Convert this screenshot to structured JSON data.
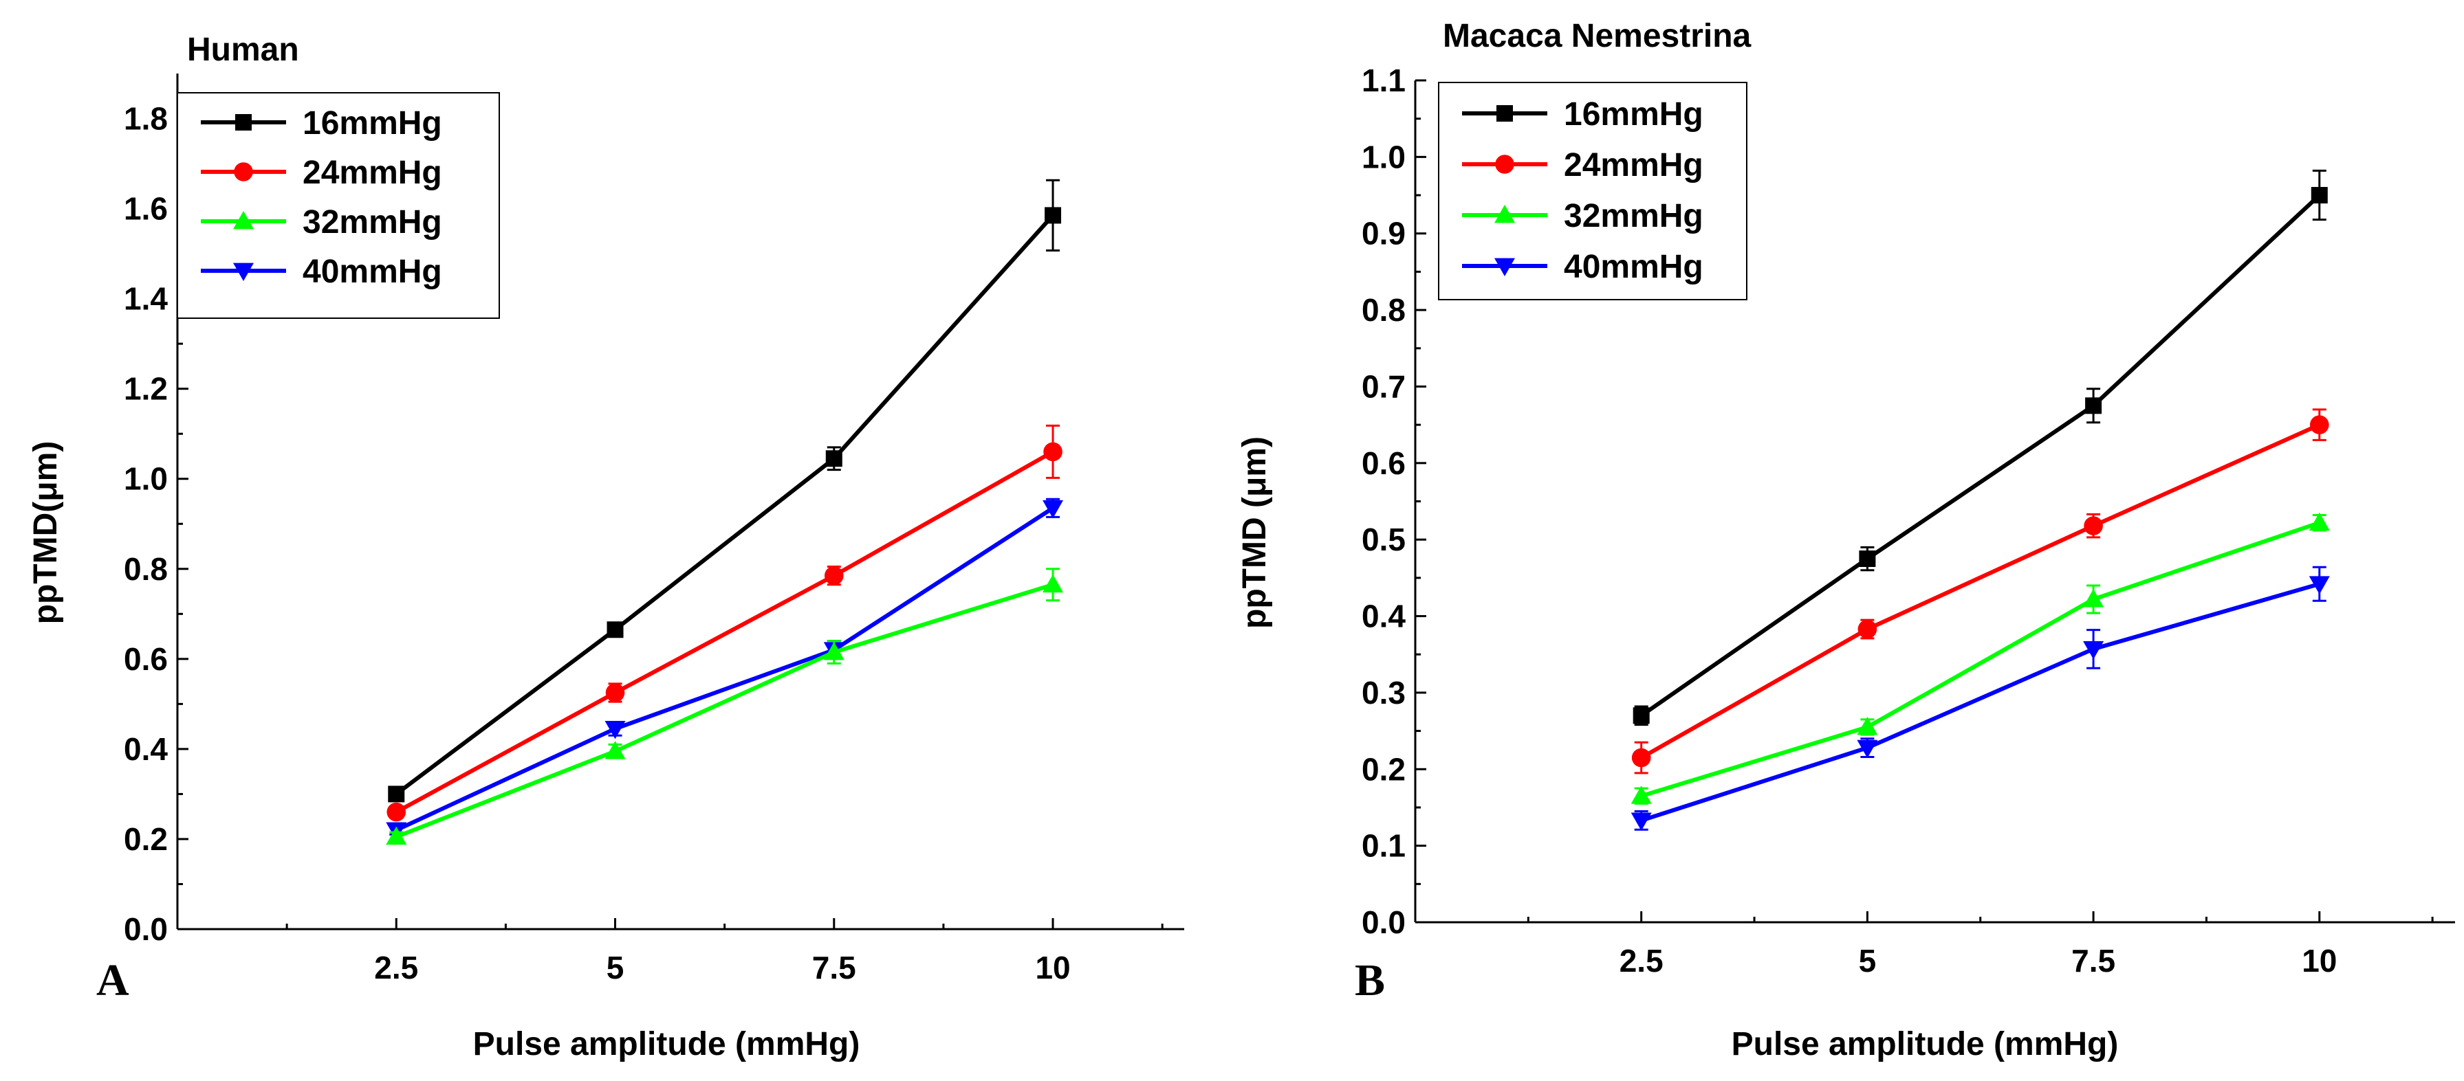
{
  "chart_data": [
    {
      "type": "line",
      "panel_label": "A",
      "title": "Human",
      "xlabel": "Pulse amplitude (mmHg)",
      "ylabel": "ppTMD(μm)",
      "categories": [
        "2.5",
        "5",
        "7.5",
        "10"
      ],
      "x": [
        2.5,
        5,
        7.5,
        10
      ],
      "xlim": [
        0,
        11.5
      ],
      "ylim": [
        0,
        1.9
      ],
      "yticks": [
        0.0,
        0.2,
        0.4,
        0.6,
        0.8,
        1.0,
        1.2,
        1.4,
        1.6,
        1.8
      ],
      "ytick_labels": [
        "0.0",
        "0.2",
        "0.4",
        "0.6",
        "0.8",
        "1.0",
        "1.2",
        "1.4",
        "1.6",
        "1.8"
      ],
      "legend_position": "top-left",
      "series": [
        {
          "name": "16mmHg",
          "color": "#000000",
          "marker": "square",
          "values": [
            0.3,
            0.665,
            1.045,
            1.585
          ],
          "errors": [
            0.01,
            0.01,
            0.025,
            0.078
          ]
        },
        {
          "name": "24mmHg",
          "color": "#ff0000",
          "marker": "circle",
          "values": [
            0.26,
            0.525,
            0.785,
            1.06
          ],
          "errors": [
            0.01,
            0.02,
            0.02,
            0.058
          ]
        },
        {
          "name": "32mmHg",
          "color": "#00ff00",
          "marker": "triangle-up",
          "values": [
            0.205,
            0.395,
            0.615,
            0.765
          ],
          "errors": [
            0.01,
            0.015,
            0.025,
            0.035
          ]
        },
        {
          "name": "40mmHg",
          "color": "#0000ff",
          "marker": "triangle-down",
          "values": [
            0.22,
            0.445,
            0.62,
            0.935
          ],
          "errors": [
            0.01,
            0.015,
            0.02,
            0.02
          ]
        }
      ]
    },
    {
      "type": "line",
      "panel_label": "B",
      "title": "Macaca Nemestrina",
      "xlabel": "Pulse amplitude (mmHg)",
      "ylabel": "ppTMD (μm)",
      "categories": [
        "2.5",
        "5",
        "7.5",
        "10"
      ],
      "x": [
        2.5,
        5,
        7.5,
        10
      ],
      "xlim": [
        0,
        11.5
      ],
      "ylim": [
        0,
        1.1
      ],
      "yticks": [
        0.0,
        0.1,
        0.2,
        0.3,
        0.4,
        0.5,
        0.6,
        0.7,
        0.8,
        0.9,
        1.0,
        1.1
      ],
      "ytick_labels": [
        "0.0",
        "0.1",
        "0.2",
        "0.3",
        "0.4",
        "0.5",
        "0.6",
        "0.7",
        "0.8",
        "0.9",
        "1.0",
        "1.1"
      ],
      "legend_position": "top-left",
      "series": [
        {
          "name": "16mmHg",
          "color": "#000000",
          "marker": "square",
          "values": [
            0.27,
            0.475,
            0.675,
            0.95
          ],
          "errors": [
            0.012,
            0.015,
            0.022,
            0.032
          ]
        },
        {
          "name": "24mmHg",
          "color": "#ff0000",
          "marker": "circle",
          "values": [
            0.215,
            0.383,
            0.518,
            0.65
          ],
          "errors": [
            0.02,
            0.012,
            0.015,
            0.02
          ]
        },
        {
          "name": "32mmHg",
          "color": "#00ff00",
          "marker": "triangle-up",
          "values": [
            0.165,
            0.255,
            0.422,
            0.522
          ],
          "errors": [
            0.01,
            0.01,
            0.018,
            0.01
          ]
        },
        {
          "name": "40mmHg",
          "color": "#0000ff",
          "marker": "triangle-down",
          "values": [
            0.133,
            0.228,
            0.357,
            0.442
          ],
          "errors": [
            0.012,
            0.012,
            0.025,
            0.022
          ]
        }
      ]
    }
  ]
}
